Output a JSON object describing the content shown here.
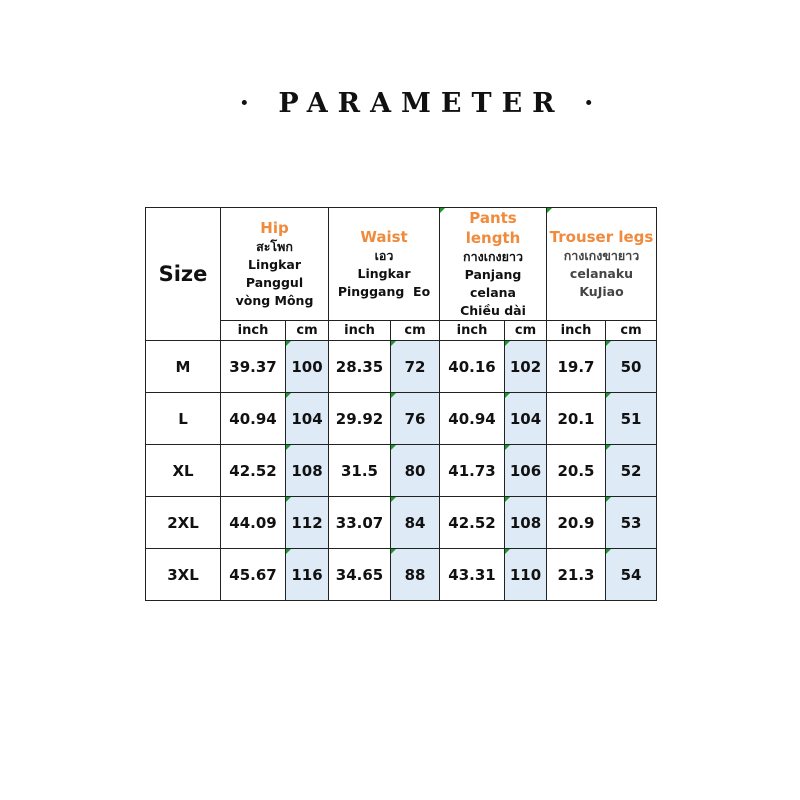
{
  "title": "· PARAMETER ·",
  "header": {
    "size": "Size",
    "unit_inch": "inch",
    "unit_cm": "cm",
    "columns": [
      {
        "en": "Hip",
        "lines": [
          "สะโพก",
          "Lingkar",
          "Panggul",
          "vòng Mông"
        ]
      },
      {
        "en": "Waist",
        "lines": [
          "เอว",
          "Lingkar",
          "Pinggang  Eo"
        ]
      },
      {
        "en": "Pants length",
        "lines": [
          "กางเกงยาว",
          "Panjang",
          "celana",
          "Chiều dài"
        ]
      },
      {
        "en": "Trouser legs",
        "lines": [
          "กางเกงขายาว",
          "celanaku",
          "KuJiao"
        ]
      }
    ]
  },
  "rows": [
    {
      "size": "M",
      "values": [
        "39.37",
        "100",
        "28.35",
        "72",
        "40.16",
        "102",
        "19.7",
        "50"
      ]
    },
    {
      "size": "L",
      "values": [
        "40.94",
        "104",
        "29.92",
        "76",
        "40.94",
        "104",
        "20.1",
        "51"
      ]
    },
    {
      "size": "XL",
      "values": [
        "42.52",
        "108",
        "31.5",
        "80",
        "41.73",
        "106",
        "20.5",
        "52"
      ]
    },
    {
      "size": "2XL",
      "values": [
        "44.09",
        "112",
        "33.07",
        "84",
        "42.52",
        "108",
        "20.9",
        "53"
      ]
    },
    {
      "size": "3XL",
      "values": [
        "45.67",
        "116",
        "34.65",
        "88",
        "43.31",
        "110",
        "21.3",
        "54"
      ]
    }
  ],
  "colors": {
    "accent": "#f08a3c",
    "cm_fill": "#deeaf6"
  }
}
